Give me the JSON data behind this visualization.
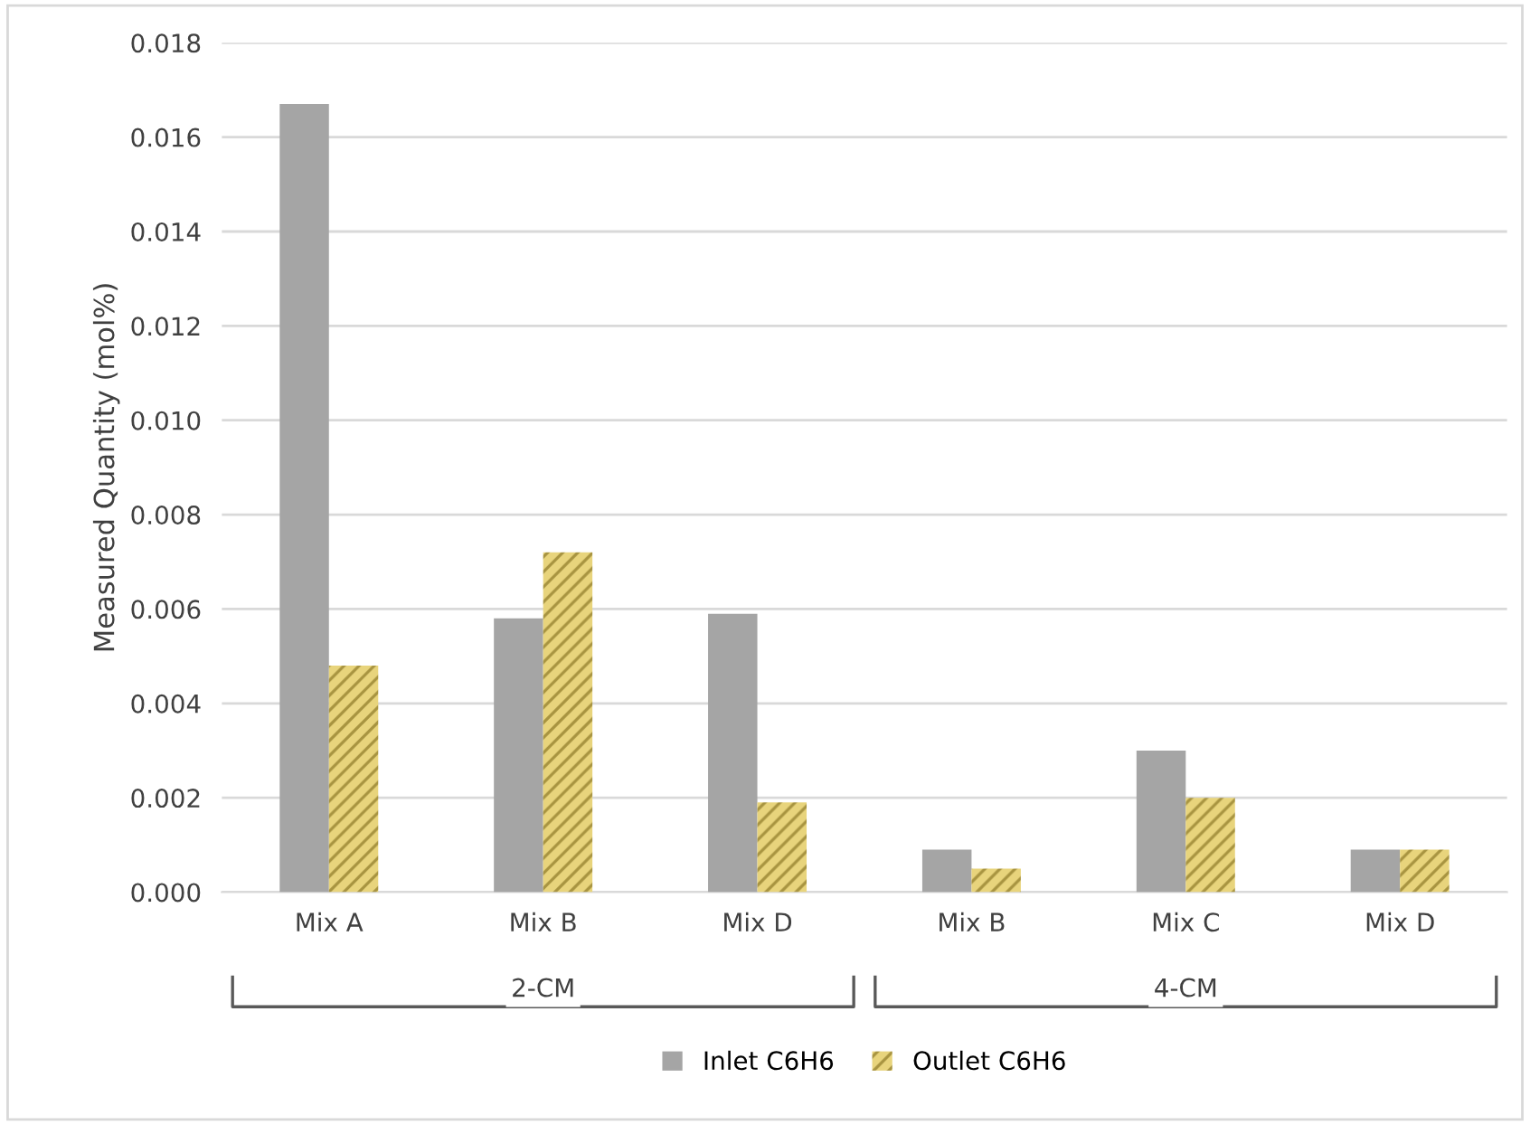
{
  "chart_data": {
    "type": "bar",
    "ylabel": "Measured Quantity (mol%)",
    "categories": [
      "Mix A",
      "Mix B",
      "Mix D",
      "Mix B",
      "Mix C",
      "Mix D"
    ],
    "series": [
      {
        "name": "Inlet C6H6",
        "color": "#a5a5a5",
        "values": [
          0.0167,
          0.0058,
          0.0059,
          0.0009,
          0.003,
          0.0009
        ]
      },
      {
        "name": "Outlet C6H6",
        "color": "#e8d47c",
        "values": [
          0.0048,
          0.0072,
          0.0019,
          0.0005,
          0.002,
          0.0009
        ]
      }
    ],
    "ylim": [
      0,
      0.018
    ],
    "yticks": [
      {
        "value": 0,
        "label": "0.000"
      },
      0.002,
      0.004,
      0.006,
      0.008,
      {
        "value": 0.01,
        "label": "0.010"
      },
      0.012,
      0.014,
      0.016,
      0.018
    ],
    "annotations": [
      "2-CM",
      "4-CM"
    ],
    "grid": "y",
    "legend": "bottom"
  }
}
